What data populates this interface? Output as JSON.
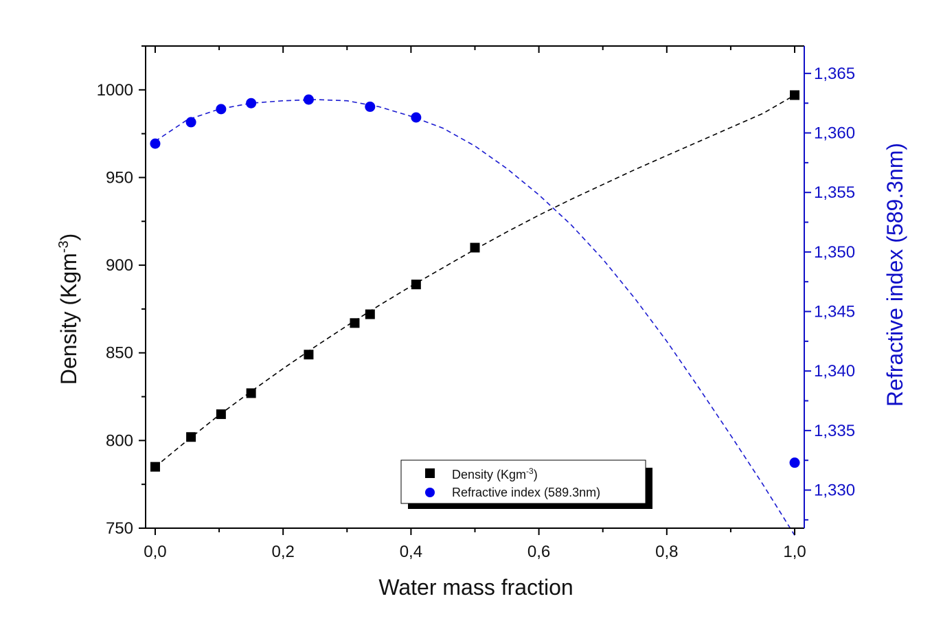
{
  "chart_data": {
    "type": "scatter",
    "xlabel": "Water mass fraction",
    "xlim": [
      -0.015,
      1.015
    ],
    "x_ticks": [
      0.0,
      0.2,
      0.4,
      0.6,
      0.8,
      1.0
    ],
    "x_tick_labels": [
      "0,0",
      "0,2",
      "0,4",
      "0,6",
      "0,8",
      "1,0"
    ],
    "x_minor_ticks": [
      0.1,
      0.3,
      0.5,
      0.7,
      0.9
    ],
    "y_left": {
      "label_main": "Density (Kgm",
      "label_sup": "-3",
      "label_end": ")",
      "lim": [
        750,
        1025
      ],
      "ticks": [
        750,
        800,
        850,
        900,
        950,
        1000
      ],
      "tick_labels": [
        "750",
        "800",
        "850",
        "900",
        "950",
        "1000"
      ],
      "minor_ticks": [
        775,
        825,
        875,
        925,
        975,
        1025
      ]
    },
    "y_right": {
      "label": "Refractive index (589.3nm)",
      "lim": [
        1.3268,
        1.3673
      ],
      "ticks": [
        1.33,
        1.335,
        1.34,
        1.345,
        1.35,
        1.355,
        1.36,
        1.365
      ],
      "tick_labels": [
        "1,330",
        "1,335",
        "1,340",
        "1,345",
        "1,350",
        "1,355",
        "1,360",
        "1,365"
      ],
      "minor_ticks": [
        1.3275,
        1.3325,
        1.3375,
        1.3425,
        1.3475,
        1.3525,
        1.3575,
        1.3625
      ]
    },
    "series": [
      {
        "name": "Density (Kgm-3)",
        "legend_main": "Density (Kgm",
        "legend_sup": "-3",
        "legend_end": ")",
        "axis": "left",
        "marker": "square",
        "color": "#000000",
        "x": [
          0.0,
          0.056,
          0.103,
          0.15,
          0.24,
          0.312,
          0.336,
          0.408,
          0.5,
          1.0
        ],
        "y": [
          785,
          802,
          815,
          827,
          849,
          867,
          872,
          889,
          910,
          997
        ],
        "fit": {
          "style": "dashed",
          "color": "#000000",
          "x": [
            0.0,
            0.05,
            0.1,
            0.15,
            0.2,
            0.25,
            0.3,
            0.35,
            0.4,
            0.45,
            0.5,
            0.55,
            0.6,
            0.65,
            0.7,
            0.75,
            0.8,
            0.85,
            0.9,
            0.95,
            1.0
          ],
          "y": [
            785,
            800,
            814.5,
            828,
            841,
            853.5,
            865.5,
            877,
            888,
            898.5,
            909,
            919,
            928.5,
            937.5,
            946,
            954.5,
            962.5,
            970.5,
            978.5,
            986.5,
            997
          ]
        }
      },
      {
        "name": "Refractive index (589.3nm)",
        "axis": "right",
        "marker": "circle",
        "color": "#0000ee",
        "x": [
          0.0,
          0.056,
          0.103,
          0.15,
          0.24,
          0.336,
          0.408,
          1.0
        ],
        "y": [
          1.3591,
          1.3609,
          1.362,
          1.3625,
          1.3628,
          1.3622,
          1.3613,
          1.3323
        ],
        "fit": {
          "style": "dashed",
          "color": "#1a1ad0",
          "x": [
            0.0,
            0.05,
            0.1,
            0.15,
            0.2,
            0.25,
            0.3,
            0.35,
            0.4,
            0.45,
            0.5,
            0.55,
            0.6,
            0.65,
            0.7,
            0.75,
            0.8,
            0.85,
            0.9,
            0.95,
            1.0
          ],
          "y": [
            1.3593,
            1.3611,
            1.362,
            1.3625,
            1.3627,
            1.3628,
            1.3627,
            1.3622,
            1.3614,
            1.3604,
            1.3589,
            1.357,
            1.3548,
            1.3523,
            1.3494,
            1.3461,
            1.3425,
            1.3386,
            1.3346,
            1.3305,
            1.3262
          ]
        }
      }
    ],
    "legend": "bottom-center",
    "grid": false
  }
}
